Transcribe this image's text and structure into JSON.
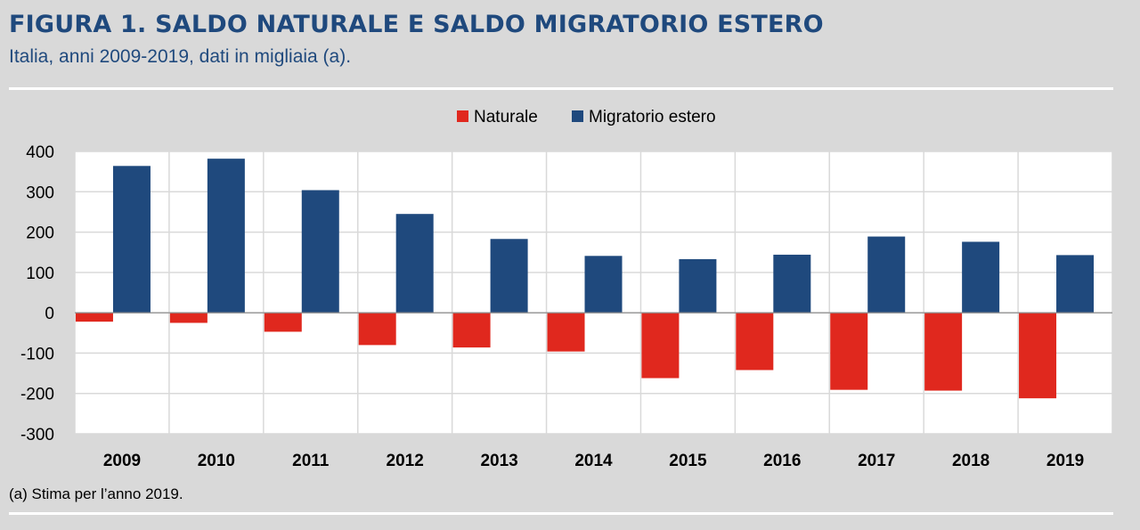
{
  "header": {
    "title": "FIGURA 1. SALDO NATURALE E SALDO MIGRATORIO ESTERO",
    "subtitle": "Italia, anni 2009-2019, dati in migliaia (a)."
  },
  "footnote": "(a) Stima per l’anno 2019.",
  "chart_data": {
    "type": "bar",
    "title": "",
    "xlabel": "",
    "ylabel": "",
    "ylim": [
      -300,
      400
    ],
    "yticks": [
      400,
      300,
      200,
      100,
      0,
      -100,
      -200,
      -300
    ],
    "grid": true,
    "legend_position": "top-center",
    "categories": [
      "2009",
      "2010",
      "2011",
      "2012",
      "2013",
      "2014",
      "2015",
      "2016",
      "2017",
      "2018",
      "2019"
    ],
    "series": [
      {
        "name": "Naturale",
        "color": "#e0281e",
        "values": [
          -22,
          -25,
          -47,
          -80,
          -86,
          -96,
          -162,
          -142,
          -191,
          -193,
          -212
        ]
      },
      {
        "name": "Migratorio estero",
        "color": "#1f497d",
        "values": [
          364,
          382,
          304,
          245,
          183,
          141,
          133,
          144,
          189,
          176,
          143
        ]
      }
    ]
  }
}
